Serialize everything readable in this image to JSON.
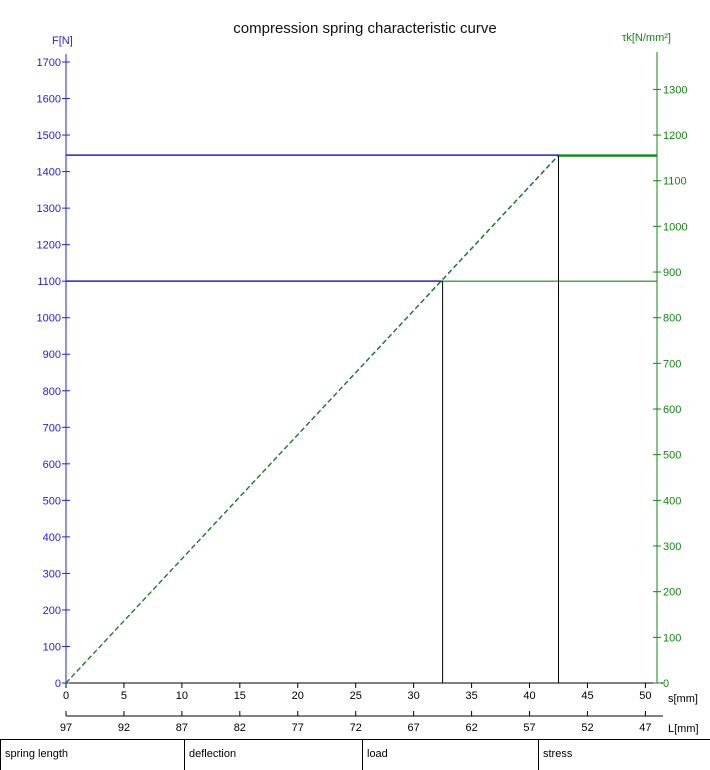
{
  "chart_data": {
    "type": "line",
    "title": "compression spring characteristic curve",
    "left_axis": {
      "label": "F[N]",
      "color": "#2222dd",
      "range": [
        0,
        1700
      ],
      "ticks": [
        0,
        100,
        200,
        300,
        400,
        500,
        600,
        700,
        800,
        900,
        1000,
        1100,
        1200,
        1300,
        1400,
        1500,
        1600,
        1700
      ]
    },
    "right_axis": {
      "label": "τk[N/mm²]",
      "color": "#118811",
      "range": [
        0,
        1360
      ],
      "ticks": [
        0,
        100,
        200,
        300,
        400,
        500,
        600,
        700,
        800,
        900,
        1000,
        1100,
        1200,
        1300
      ]
    },
    "x_axis": {
      "label": "s[mm]",
      "range": [
        0,
        51
      ],
      "ticks": [
        0,
        5,
        10,
        15,
        20,
        25,
        30,
        35,
        40,
        45,
        50
      ]
    },
    "x2_axis": {
      "label": "L[mm]",
      "ticks": [
        {
          "s": 0,
          "text": "97"
        },
        {
          "s": 5,
          "text": "92"
        },
        {
          "s": 10,
          "text": "87"
        },
        {
          "s": 15,
          "text": "82"
        },
        {
          "s": 20,
          "text": "77"
        },
        {
          "s": 25,
          "text": "72"
        },
        {
          "s": 30,
          "text": "67"
        },
        {
          "s": 35,
          "text": "62"
        },
        {
          "s": 40,
          "text": "57"
        },
        {
          "s": 45,
          "text": "52"
        },
        {
          "s": 50,
          "text": "47"
        }
      ]
    },
    "series": [
      {
        "axis": "left",
        "color": "#2222dd",
        "style": "dashed",
        "x": [
          0,
          42.5
        ],
        "y": [
          0,
          1445
        ]
      },
      {
        "axis": "right",
        "color": "#118811",
        "style": "dashed",
        "x": [
          0,
          42.5
        ],
        "y": [
          0,
          1155
        ]
      }
    ],
    "working_points": [
      {
        "s": 32.5,
        "F": 1100,
        "tau": 880,
        "weight": 1
      },
      {
        "s": 42.5,
        "F": 1445,
        "tau": 1155,
        "weight": 2
      }
    ],
    "grid": false
  },
  "footer": {
    "cells": [
      "spring length",
      "deflection",
      "load",
      "stress"
    ]
  }
}
